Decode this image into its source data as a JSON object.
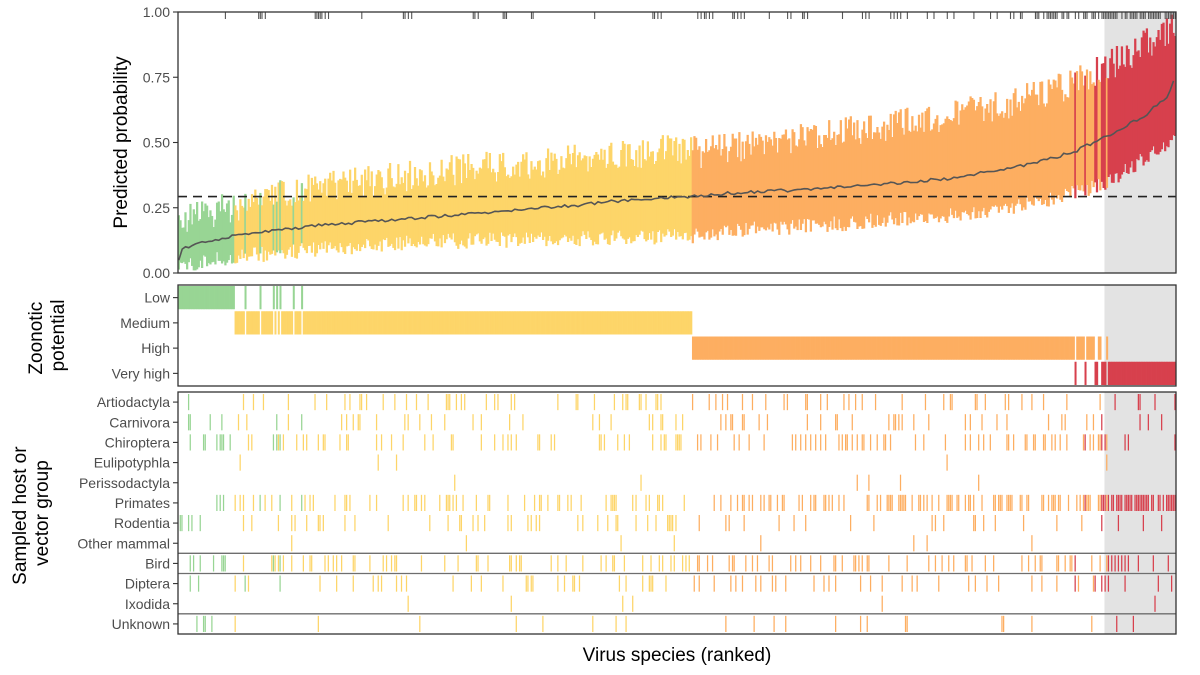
{
  "chart_data": {
    "type": "composite",
    "n_species": 600,
    "x_label": "Virus species (ranked)",
    "shaded_region_start_rank": 557,
    "colors": {
      "Low": "#98d594",
      "Medium": "#fdd569",
      "High": "#fdae61",
      "Very high": "#d7404d",
      "shade": "#e3e3e3",
      "median_line": "#555555",
      "cutoff_line": "#222222",
      "border": "#333333",
      "hline": "#6e6e6e"
    },
    "probability_panel": {
      "type": "ranged-line",
      "ylabel": "Predicted probability",
      "ylim": [
        0,
        1
      ],
      "yticks": [
        "0.00",
        "0.25",
        "0.50",
        "0.75",
        "1.00"
      ],
      "ytick_values": [
        0,
        0.25,
        0.5,
        0.75,
        1.0
      ],
      "cutoff": 0.293,
      "median_curve": [
        [
          0,
          0.05
        ],
        [
          2,
          0.09
        ],
        [
          15,
          0.12
        ],
        [
          40,
          0.15
        ],
        [
          80,
          0.18
        ],
        [
          120,
          0.2
        ],
        [
          160,
          0.22
        ],
        [
          200,
          0.24
        ],
        [
          240,
          0.26
        ],
        [
          270,
          0.28
        ],
        [
          309,
          0.295
        ],
        [
          340,
          0.31
        ],
        [
          380,
          0.32
        ],
        [
          420,
          0.34
        ],
        [
          460,
          0.36
        ],
        [
          500,
          0.4
        ],
        [
          520,
          0.43
        ],
        [
          540,
          0.47
        ],
        [
          560,
          0.53
        ],
        [
          580,
          0.6
        ],
        [
          595,
          0.68
        ],
        [
          600,
          0.78
        ]
      ],
      "upper_curve": [
        [
          0,
          0.2
        ],
        [
          30,
          0.25
        ],
        [
          60,
          0.3
        ],
        [
          100,
          0.34
        ],
        [
          160,
          0.39
        ],
        [
          230,
          0.43
        ],
        [
          308,
          0.48
        ],
        [
          312,
          0.46
        ],
        [
          380,
          0.52
        ],
        [
          440,
          0.58
        ],
        [
          500,
          0.65
        ],
        [
          540,
          0.73
        ],
        [
          570,
          0.83
        ],
        [
          600,
          0.95
        ]
      ],
      "lower_curve": [
        [
          0,
          0.02
        ],
        [
          30,
          0.06
        ],
        [
          80,
          0.09
        ],
        [
          150,
          0.12
        ],
        [
          230,
          0.13
        ],
        [
          308,
          0.14
        ],
        [
          330,
          0.16
        ],
        [
          400,
          0.19
        ],
        [
          460,
          0.22
        ],
        [
          520,
          0.27
        ],
        [
          560,
          0.35
        ],
        [
          600,
          0.52
        ]
      ],
      "rug_ranks": [
        28,
        48,
        49,
        50,
        52,
        82,
        83,
        84,
        85,
        86,
        88,
        90,
        110,
        135,
        136,
        138,
        140,
        177,
        178,
        180,
        195,
        196,
        197,
        212,
        213,
        250,
        285,
        286,
        288,
        290,
        312,
        314,
        316,
        317,
        319,
        321,
        333,
        334,
        336,
        338,
        340,
        355,
        366,
        368,
        375,
        376,
        378,
        399,
        411,
        413,
        415,
        428,
        430,
        432,
        434,
        438,
        450,
        454,
        462,
        466,
        478,
        488,
        492
      ]
    },
    "zoonotic_panel": {
      "ylabel": [
        "Zoonotic",
        "potential"
      ],
      "categories": [
        "Low",
        "Medium",
        "High",
        "Very high"
      ],
      "boundaries": [
        [
          0,
          37
        ],
        [
          37,
          309
        ],
        [
          309,
          555
        ],
        [
          555,
          600
        ]
      ],
      "transitions": {
        "low_medium": {
          "from": 34,
          "to": 110,
          "min": 0.55,
          "max": 1.0
        },
        "medium_low": {
          "from": 37,
          "to": 92,
          "min": 0.0,
          "max": 0.4
        },
        "high_veryhigh": {
          "from": 523,
          "to": 555,
          "min": 0.6,
          "max": 1.0
        },
        "veryhigh_high": {
          "from": 555,
          "to": 560,
          "min": 0.0,
          "max": 0.3
        }
      }
    },
    "host_panel": {
      "ylabel": [
        "Sampled host or",
        "vector group"
      ],
      "groups": [
        "Artiodactyla",
        "Carnivora",
        "Chiroptera",
        "Eulipotyphla",
        "Perissodactyla",
        "Primates",
        "Rodentia",
        "Other mammal",
        "Bird",
        "Diptera",
        "Ixodida",
        "Unknown"
      ],
      "separator_after": [
        "Other mammal",
        "Bird",
        "Ixodida"
      ],
      "presence_rate": [
        0.14,
        0.09,
        0.2,
        0.01,
        0.02,
        0.2,
        0.11,
        0.02,
        0.22,
        0.11,
        0.01,
        0.05
      ],
      "dense_ranks": [
        {
          "group": "Primates",
          "from": 556,
          "to": 600,
          "rate": 0.9
        },
        {
          "group": "Primates",
          "from": 420,
          "to": 555,
          "rate": 0.45
        }
      ]
    }
  }
}
